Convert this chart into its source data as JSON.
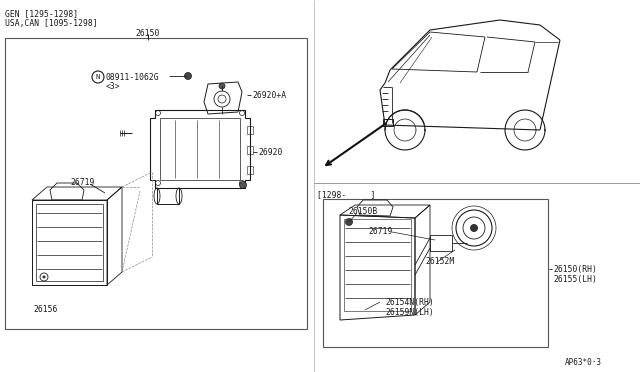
{
  "bg_color": "#ffffff",
  "line_color": "#1a1a1a",
  "gray_color": "#888888",
  "light_gray": "#cccccc",
  "fig_width": 6.4,
  "fig_height": 3.72,
  "top_left_text_line1": "GEN [1295-1298]",
  "top_left_text_line2": "USA,CAN [1095-1298]",
  "part_26150": "26150",
  "part_08911": "08911-1062G",
  "part_n3": "<3>",
  "part_26920a": "26920+A",
  "part_26920": "26920",
  "part_26719": "26719",
  "part_26156": "26156",
  "part_26150b": "26150B",
  "part_26719b": "26719",
  "part_26152m": "26152M",
  "part_26150rh": "26150(RH)",
  "part_26155lh": "26155(LH)",
  "part_26154n": "26154N(RH)",
  "part_26159n": "26159N(LH)",
  "date_ref": "[1298-     ]",
  "drawing_ref": "AP63*0·3"
}
